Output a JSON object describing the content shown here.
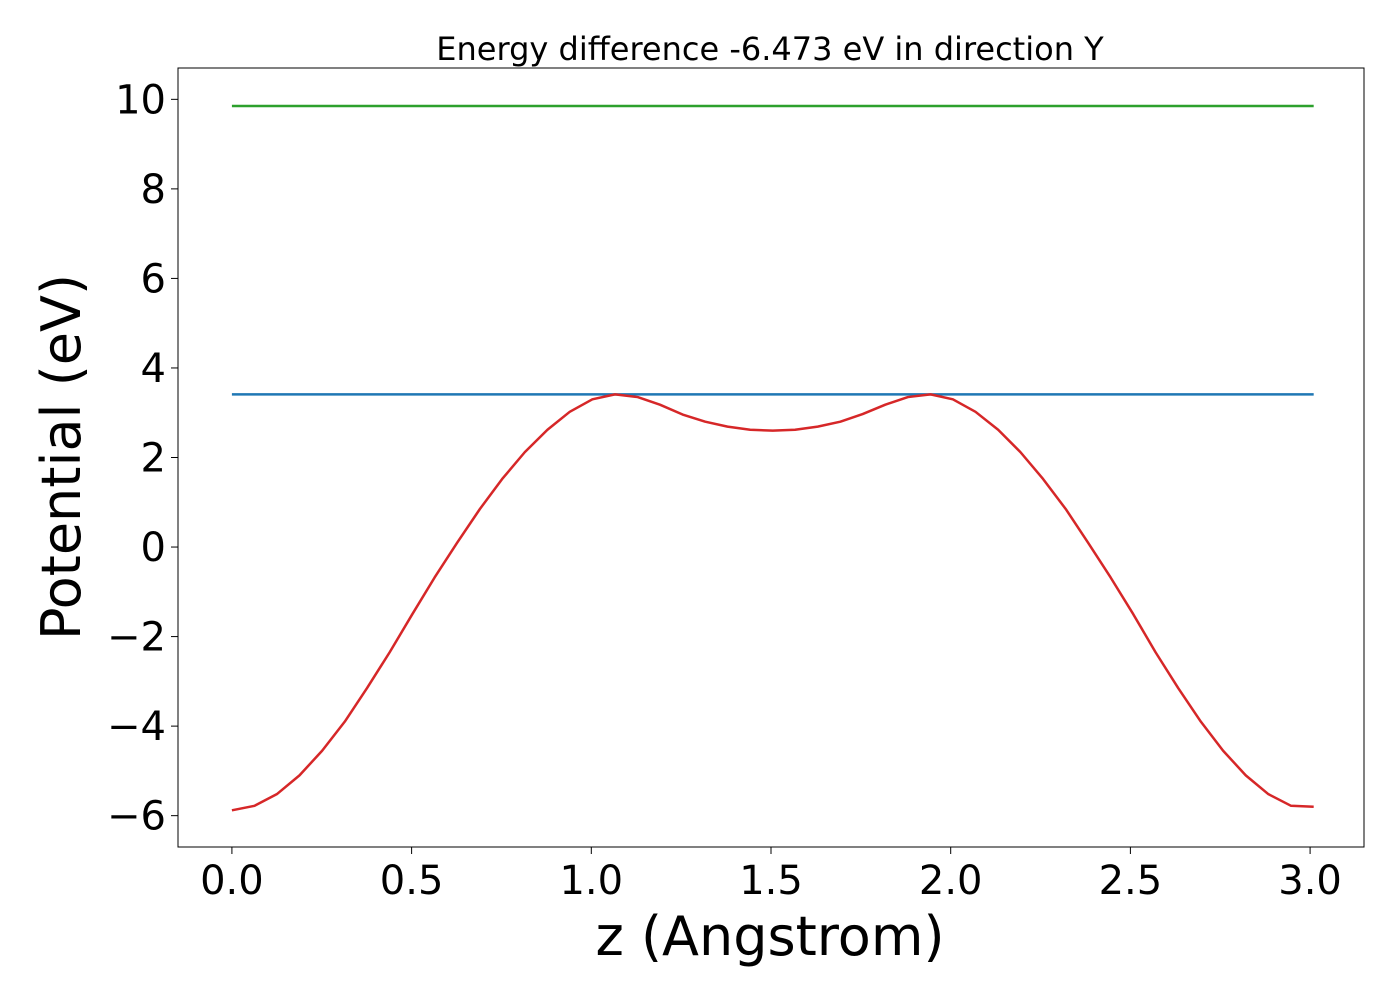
{
  "chart_data": {
    "type": "line",
    "title": "Energy difference -6.473 eV in direction Y",
    "xlabel": "z (Angstrom)",
    "ylabel": "Potential (eV)",
    "xlim": [
      -0.15,
      3.15
    ],
    "ylim": [
      -6.7,
      10.7
    ],
    "xticks": [
      0.0,
      0.5,
      1.0,
      1.5,
      2.0,
      2.5,
      3.0
    ],
    "xtick_labels": [
      "0.0",
      "0.5",
      "1.0",
      "1.5",
      "2.0",
      "2.5",
      "3.0"
    ],
    "yticks": [
      -6,
      -4,
      -2,
      0,
      2,
      4,
      6,
      8,
      10
    ],
    "ytick_labels": [
      "−6",
      "−4",
      "−2",
      "0",
      "2",
      "4",
      "6",
      "8",
      "10"
    ],
    "grid": false,
    "legend": "none",
    "series": [
      {
        "color": "#2ca02c",
        "x": [
          0.0,
          3.01
        ],
        "y": [
          9.85,
          9.85
        ]
      },
      {
        "color": "#1f77b4",
        "x": [
          0.0,
          3.01
        ],
        "y": [
          3.41,
          3.41
        ]
      },
      {
        "color": "#d62728",
        "x": [
          0.0,
          0.063,
          0.125,
          0.188,
          0.251,
          0.314,
          0.376,
          0.439,
          0.502,
          0.564,
          0.627,
          0.69,
          0.752,
          0.815,
          0.878,
          0.94,
          1.003,
          1.066,
          1.129,
          1.191,
          1.254,
          1.317,
          1.379,
          1.442,
          1.505,
          1.567,
          1.63,
          1.693,
          1.755,
          1.818,
          1.881,
          1.944,
          2.006,
          2.069,
          2.132,
          2.194,
          2.257,
          2.32,
          2.382,
          2.445,
          2.508,
          2.57,
          2.633,
          2.696,
          2.758,
          2.821,
          2.884,
          2.947,
          3.01
        ],
        "y": [
          -5.88,
          -5.78,
          -5.52,
          -5.1,
          -4.55,
          -3.9,
          -3.15,
          -2.35,
          -1.5,
          -0.68,
          0.1,
          0.85,
          1.52,
          2.12,
          2.62,
          3.02,
          3.3,
          3.41,
          3.35,
          3.18,
          2.96,
          2.8,
          2.69,
          2.62,
          2.6,
          2.62,
          2.69,
          2.8,
          2.97,
          3.18,
          3.35,
          3.41,
          3.3,
          3.02,
          2.62,
          2.12,
          1.52,
          0.85,
          0.1,
          -0.68,
          -1.5,
          -2.35,
          -3.15,
          -3.9,
          -4.55,
          -5.1,
          -5.52,
          -5.78,
          -5.8
        ]
      }
    ]
  }
}
